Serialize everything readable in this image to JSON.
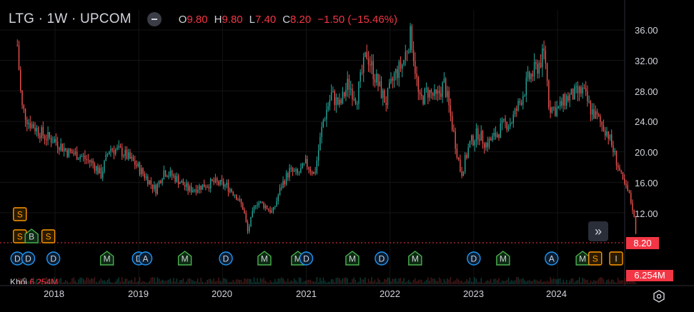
{
  "header": {
    "symbol": "LTG · 1W · UPCOM",
    "o_label": "O",
    "o_value": "9.80",
    "h_label": "H",
    "h_value": "9.80",
    "l_label": "L",
    "l_value": "7.40",
    "c_label": "C",
    "c_value": "8.20",
    "change": "−1.50 (−15.46%)"
  },
  "price_axis": {
    "ticks": [
      "36.00",
      "32.00",
      "28.00",
      "24.00",
      "20.00",
      "16.00",
      "12.00"
    ]
  },
  "last_price": "8.20",
  "volume": {
    "label": "Khối",
    "value": "6.254M",
    "badge": "6.254M"
  },
  "time_axis": {
    "years": [
      "2018",
      "2019",
      "2020",
      "2021",
      "2022",
      "2023",
      "2024"
    ]
  },
  "scroll_button": {
    "glyph": "»"
  },
  "colors": {
    "up": "#26a69a",
    "down": "#ef5350",
    "price_badge": "#f23645",
    "background": "#000000"
  },
  "events": {
    "row1": [
      {
        "type": "S",
        "kind": "split",
        "x_year": 2017.58
      }
    ],
    "row2": [
      {
        "type": "S",
        "kind": "split",
        "x_year": 2017.58
      },
      {
        "type": "B",
        "kind": "bond",
        "x_year": 2017.72
      },
      {
        "type": "S",
        "kind": "split",
        "x_year": 2017.92
      }
    ],
    "row3": [
      {
        "type": "D",
        "kind": "dividend",
        "x_year": 2017.55
      },
      {
        "type": "D",
        "kind": "dividend",
        "x_year": 2017.68
      },
      {
        "type": "D",
        "kind": "dividend",
        "x_year": 2017.98
      },
      {
        "type": "M",
        "kind": "meeting",
        "x_year": 2018.62
      },
      {
        "type": "D",
        "kind": "dividend",
        "x_year": 2019.0
      },
      {
        "type": "A",
        "kind": "announcement",
        "x_year": 2019.08
      },
      {
        "type": "M",
        "kind": "meeting",
        "x_year": 2019.55
      },
      {
        "type": "D",
        "kind": "dividend",
        "x_year": 2020.04
      },
      {
        "type": "M",
        "kind": "meeting",
        "x_year": 2020.5
      },
      {
        "type": "M",
        "kind": "meeting",
        "x_year": 2020.9
      },
      {
        "type": "D",
        "kind": "dividend",
        "x_year": 2021.0
      },
      {
        "type": "M",
        "kind": "meeting",
        "x_year": 2021.55
      },
      {
        "type": "D",
        "kind": "dividend",
        "x_year": 2021.9
      },
      {
        "type": "M",
        "kind": "meeting",
        "x_year": 2022.3
      },
      {
        "type": "D",
        "kind": "dividend",
        "x_year": 2023.0
      },
      {
        "type": "M",
        "kind": "meeting",
        "x_year": 2023.35
      },
      {
        "type": "A",
        "kind": "announcement",
        "x_year": 2023.93
      },
      {
        "type": "M",
        "kind": "meeting",
        "x_year": 2024.3
      },
      {
        "type": "S",
        "kind": "split",
        "x_year": 2024.45
      },
      {
        "type": "I",
        "kind": "ipo",
        "x_year": 2024.7
      }
    ]
  },
  "chart_data": {
    "type": "candlestick",
    "title": "LTG · 1W · UPCOM",
    "x_range": [
      2017.35,
      2024.95
    ],
    "ylim": [
      8.2,
      36.0
    ],
    "y_ticks": [
      12,
      16,
      20,
      24,
      28,
      32,
      36
    ],
    "x_ticks": [
      "2018",
      "2019",
      "2020",
      "2021",
      "2022",
      "2023",
      "2024"
    ],
    "last_close": 8.2,
    "path": [
      [
        2017.55,
        34.0
      ],
      [
        2017.6,
        26.0
      ],
      [
        2017.68,
        24.0
      ],
      [
        2017.78,
        23.0
      ],
      [
        2017.88,
        22.0
      ],
      [
        2018.0,
        21.5
      ],
      [
        2018.15,
        20.0
      ],
      [
        2018.3,
        19.5
      ],
      [
        2018.45,
        18.5
      ],
      [
        2018.55,
        17.0
      ],
      [
        2018.65,
        20.5
      ],
      [
        2018.8,
        20.0
      ],
      [
        2018.95,
        18.5
      ],
      [
        2019.1,
        16.5
      ],
      [
        2019.2,
        15.0
      ],
      [
        2019.3,
        17.5
      ],
      [
        2019.45,
        16.5
      ],
      [
        2019.6,
        15.0
      ],
      [
        2019.75,
        15.5
      ],
      [
        2019.9,
        16.0
      ],
      [
        2020.05,
        15.5
      ],
      [
        2020.15,
        14.5
      ],
      [
        2020.25,
        12.5
      ],
      [
        2020.3,
        9.5
      ],
      [
        2020.4,
        13.5
      ],
      [
        2020.5,
        13.0
      ],
      [
        2020.6,
        12.0
      ],
      [
        2020.7,
        15.5
      ],
      [
        2020.8,
        17.5
      ],
      [
        2020.9,
        17.0
      ],
      [
        2021.0,
        18.5
      ],
      [
        2021.1,
        17.0
      ],
      [
        2021.2,
        24.0
      ],
      [
        2021.3,
        27.5
      ],
      [
        2021.4,
        26.0
      ],
      [
        2021.5,
        29.0
      ],
      [
        2021.6,
        27.0
      ],
      [
        2021.72,
        33.0
      ],
      [
        2021.85,
        29.0
      ],
      [
        2021.95,
        26.5
      ],
      [
        2022.05,
        30.0
      ],
      [
        2022.15,
        31.5
      ],
      [
        2022.25,
        35.5
      ],
      [
        2022.35,
        26.5
      ],
      [
        2022.45,
        28.0
      ],
      [
        2022.55,
        27.0
      ],
      [
        2022.65,
        29.0
      ],
      [
        2022.75,
        23.0
      ],
      [
        2022.85,
        17.0
      ],
      [
        2022.95,
        21.0
      ],
      [
        2023.05,
        22.5
      ],
      [
        2023.15,
        21.0
      ],
      [
        2023.25,
        22.0
      ],
      [
        2023.35,
        23.5
      ],
      [
        2023.45,
        24.0
      ],
      [
        2023.55,
        26.5
      ],
      [
        2023.65,
        29.5
      ],
      [
        2023.75,
        31.0
      ],
      [
        2023.85,
        33.0
      ],
      [
        2023.9,
        26.0
      ],
      [
        2024.0,
        25.5
      ],
      [
        2024.1,
        27.0
      ],
      [
        2024.2,
        27.5
      ],
      [
        2024.3,
        28.0
      ],
      [
        2024.4,
        25.5
      ],
      [
        2024.5,
        24.0
      ],
      [
        2024.6,
        22.5
      ],
      [
        2024.7,
        19.0
      ],
      [
        2024.78,
        16.0
      ],
      [
        2024.85,
        14.5
      ],
      [
        2024.9,
        12.5
      ],
      [
        2024.95,
        8.2
      ]
    ],
    "volume_max_label": "6.254M"
  }
}
